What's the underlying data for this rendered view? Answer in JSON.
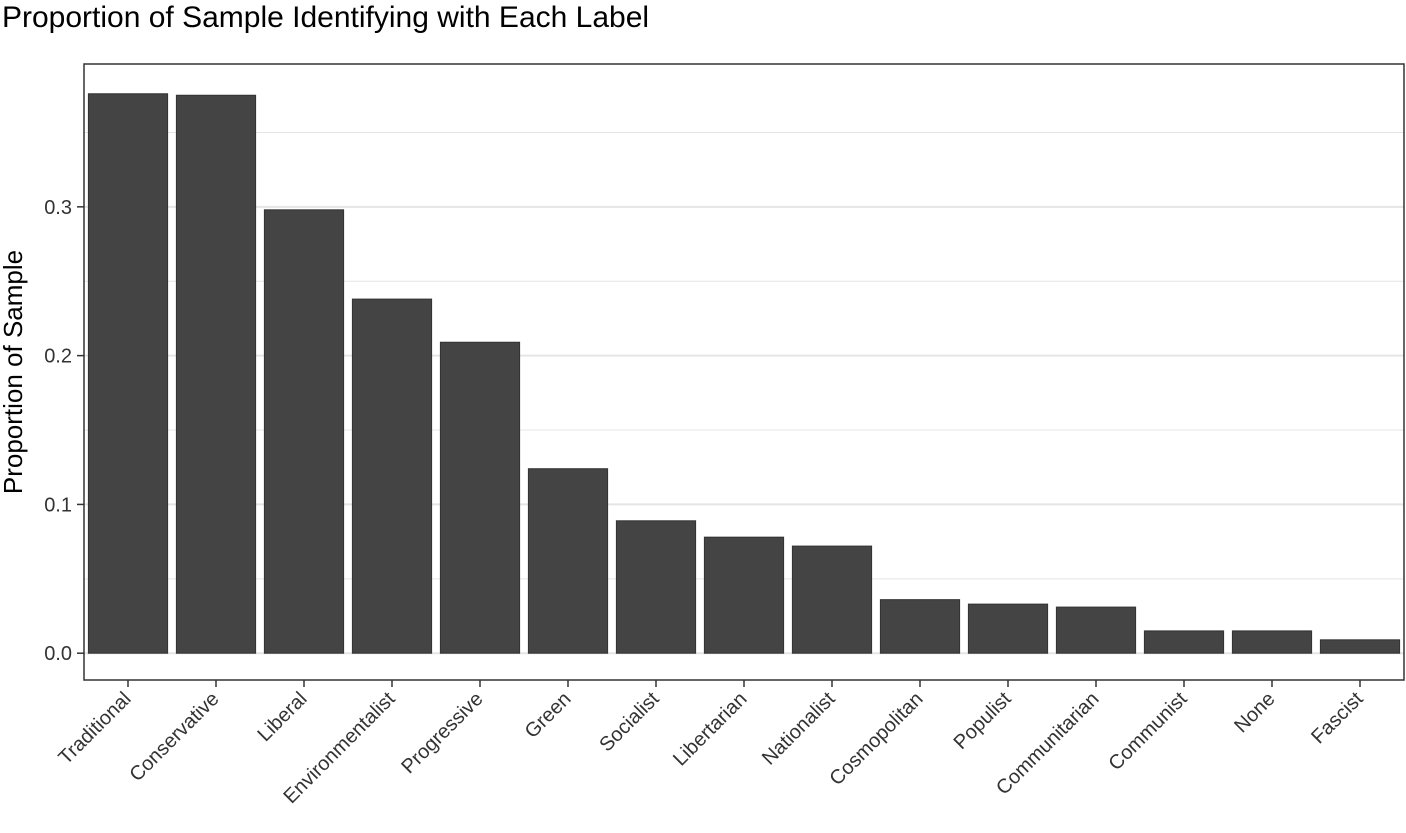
{
  "chart_data": {
    "type": "bar",
    "title": "Proportion of Sample Identifying with Each Label",
    "xlabel": "",
    "ylabel": "Proportion of Sample",
    "categories": [
      "Traditional",
      "Conservative",
      "Liberal",
      "Environmentalist",
      "Progressive",
      "Green",
      "Socialist",
      "Libertarian",
      "Nationalist",
      "Cosmopolitan",
      "Populist",
      "Communitarian",
      "Communist",
      "None",
      "Fascist"
    ],
    "values": [
      0.376,
      0.375,
      0.298,
      0.238,
      0.209,
      0.124,
      0.089,
      0.078,
      0.072,
      0.036,
      0.033,
      0.031,
      0.015,
      0.015,
      0.009
    ],
    "ylim": [
      -0.018,
      0.396
    ],
    "yticks": [
      0.0,
      0.1,
      0.2,
      0.3
    ],
    "ytick_labels": [
      "0.0",
      "0.1",
      "0.2",
      "0.3"
    ],
    "minor_gridlines": [
      0.05,
      0.15,
      0.25,
      0.35
    ],
    "grid": true,
    "legend": "none",
    "colors": {
      "bar_fill": "#444444",
      "bar_stroke": "#333333",
      "grid": "#e5e5e5",
      "panel_border": "#333333"
    }
  }
}
